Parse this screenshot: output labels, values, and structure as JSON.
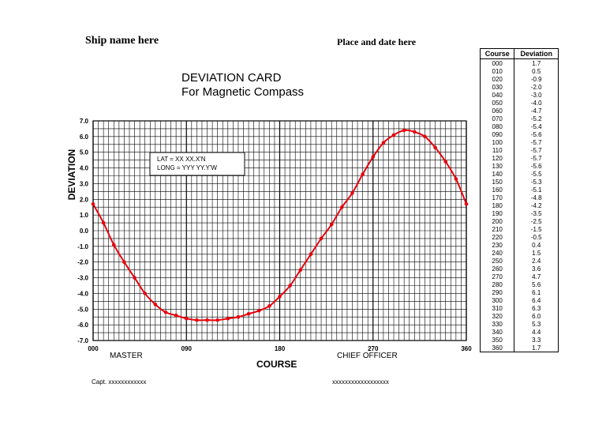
{
  "header": {
    "ship_name": "Ship name here",
    "place_date": "Place and date here",
    "title_line1": "DEVIATION CARD",
    "title_line2": "For Magnetic Compass"
  },
  "position_box": {
    "lat": "LAT    =   XX  XX.X'N",
    "long": "LONG = YYY  YY.Y'W"
  },
  "footer": {
    "master": "MASTER",
    "chief_officer": "CHIEF OFFICER",
    "capt": "Capt. xxxxxxxxxxxx",
    "signature_placeholder": "xxxxxxxxxxxxxxxxxx"
  },
  "table": {
    "col_course": "Course",
    "col_deviation": "Deviation",
    "rows": [
      [
        "000",
        "1.7"
      ],
      [
        "010",
        "0.5"
      ],
      [
        "020",
        "-0.9"
      ],
      [
        "030",
        "-2.0"
      ],
      [
        "040",
        "-3.0"
      ],
      [
        "050",
        "-4.0"
      ],
      [
        "060",
        "-4.7"
      ],
      [
        "070",
        "-5.2"
      ],
      [
        "080",
        "-5.4"
      ],
      [
        "090",
        "-5.6"
      ],
      [
        "100",
        "-5.7"
      ],
      [
        "110",
        "-5.7"
      ],
      [
        "120",
        "-5.7"
      ],
      [
        "130",
        "-5.6"
      ],
      [
        "140",
        "-5.5"
      ],
      [
        "150",
        "-5.3"
      ],
      [
        "160",
        "-5.1"
      ],
      [
        "170",
        "-4.8"
      ],
      [
        "180",
        "-4.2"
      ],
      [
        "190",
        "-3.5"
      ],
      [
        "200",
        "-2.5"
      ],
      [
        "210",
        "-1.5"
      ],
      [
        "220",
        "-0.5"
      ],
      [
        "230",
        "0.4"
      ],
      [
        "240",
        "1.5"
      ],
      [
        "250",
        "2.4"
      ],
      [
        "260",
        "3.6"
      ],
      [
        "270",
        "4.7"
      ],
      [
        "280",
        "5.6"
      ],
      [
        "290",
        "6.1"
      ],
      [
        "300",
        "6.4"
      ],
      [
        "310",
        "6.3"
      ],
      [
        "320",
        "6.0"
      ],
      [
        "330",
        "5.3"
      ],
      [
        "340",
        "4.4"
      ],
      [
        "350",
        "3.3"
      ],
      [
        "360",
        "1.7"
      ]
    ]
  },
  "chart_data": {
    "type": "line",
    "title": "",
    "xlabel": "COURSE",
    "ylabel": "DEVIATION",
    "xlim": [
      0,
      360
    ],
    "ylim": [
      -7,
      7
    ],
    "x_ticks": [
      "000",
      "090",
      "180",
      "270",
      "360"
    ],
    "y_ticks": [
      "7.0",
      "6.0",
      "5.0",
      "4.0",
      "3.0",
      "2.0",
      "1.0",
      "0.0",
      "-1.0",
      "-2.0",
      "-3.0",
      "-4.0",
      "-5.0",
      "-6.0",
      "-7.0"
    ],
    "grid": true,
    "series": [
      {
        "color": "#e8000b",
        "x": [
          0,
          10,
          20,
          30,
          40,
          50,
          60,
          70,
          80,
          90,
          100,
          110,
          120,
          130,
          140,
          150,
          160,
          170,
          180,
          190,
          200,
          210,
          220,
          230,
          240,
          250,
          260,
          270,
          280,
          290,
          300,
          310,
          320,
          330,
          340,
          350,
          360
        ],
        "values": [
          1.7,
          0.5,
          -0.9,
          -2.0,
          -3.0,
          -4.0,
          -4.7,
          -5.2,
          -5.4,
          -5.6,
          -5.7,
          -5.7,
          -5.7,
          -5.6,
          -5.5,
          -5.3,
          -5.1,
          -4.8,
          -4.2,
          -3.5,
          -2.5,
          -1.5,
          -0.5,
          0.4,
          1.5,
          2.4,
          3.6,
          4.7,
          5.6,
          6.1,
          6.4,
          6.3,
          6.0,
          5.3,
          4.4,
          3.3,
          1.7
        ]
      }
    ]
  }
}
